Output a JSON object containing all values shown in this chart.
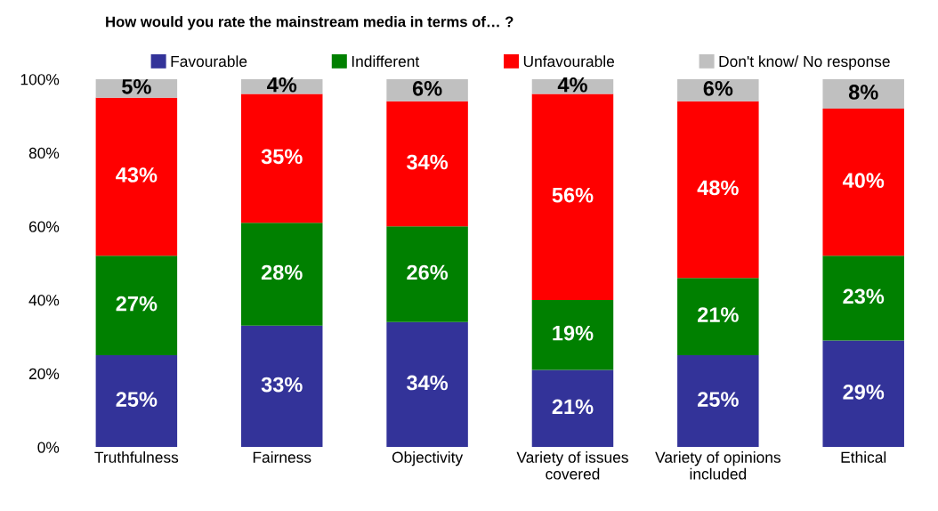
{
  "chart_data": {
    "type": "bar",
    "stacked": true,
    "title": "How would you rate the mainstream media in terms of… ?",
    "categories": [
      "Truthfulness",
      "Fairness",
      "Objectivity",
      "Variety of issues\ncovered",
      "Variety of opinions\nincluded",
      "Ethical"
    ],
    "series": [
      {
        "name": "Favourable",
        "color": "#333399",
        "values": [
          25,
          33,
          34,
          21,
          25,
          29
        ],
        "value_labels": [
          "25%",
          "33%",
          "34%",
          "21%",
          "25%",
          "29%"
        ]
      },
      {
        "name": "Indifferent",
        "color": "#008000",
        "values": [
          27,
          28,
          26,
          19,
          21,
          23
        ],
        "value_labels": [
          "27%",
          "28%",
          "26%",
          "19%",
          "21%",
          "23%"
        ]
      },
      {
        "name": "Unfavourable",
        "color": "#ff0000",
        "values": [
          43,
          35,
          34,
          56,
          48,
          40
        ],
        "value_labels": [
          "43%",
          "35%",
          "34%",
          "56%",
          "48%",
          "40%"
        ]
      },
      {
        "name": "Don't know/ No response",
        "color": "#c0c0c0",
        "values": [
          5,
          4,
          6,
          4,
          6,
          8
        ],
        "value_labels": [
          "5%",
          "4%",
          "6%",
          "4%",
          "6%",
          "8%"
        ]
      }
    ],
    "ylim": [
      0,
      100
    ],
    "yticks": [
      {
        "value": 0,
        "label": "0%"
      },
      {
        "value": 20,
        "label": "20%"
      },
      {
        "value": 40,
        "label": "40%"
      },
      {
        "value": 60,
        "label": "60%"
      },
      {
        "value": 80,
        "label": "80%"
      },
      {
        "value": 100,
        "label": "100%"
      }
    ],
    "grid": false,
    "legend": "top"
  }
}
